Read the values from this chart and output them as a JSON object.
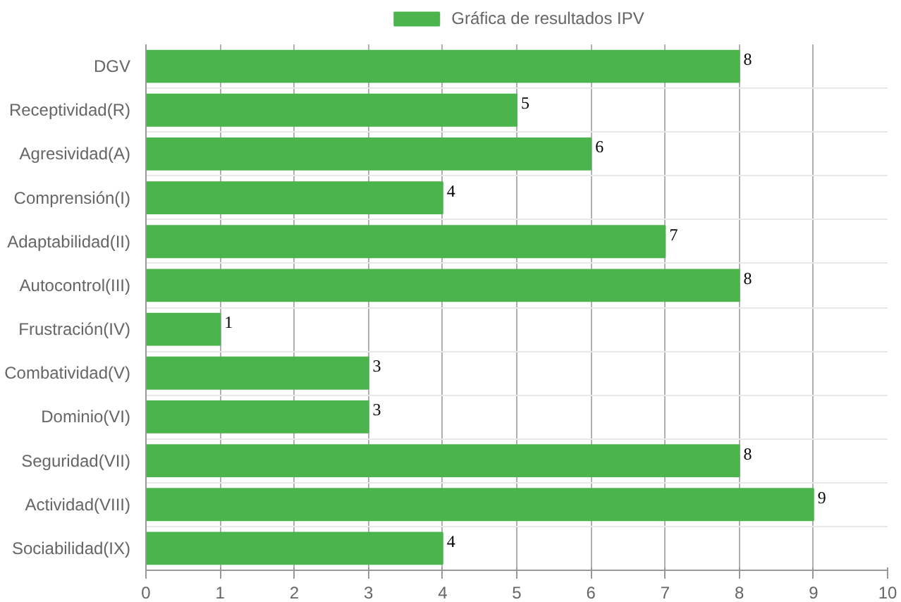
{
  "chart_data": {
    "type": "bar",
    "orientation": "horizontal",
    "categories": [
      "DGV",
      "Receptividad(R)",
      "Agresividad(A)",
      "Comprensión(I)",
      "Adaptabilidad(II)",
      "Autocontrol(III)",
      "Frustración(IV)",
      "Combatividad(V)",
      "Dominio(VI)",
      "Seguridad(VII)",
      "Actividad(VIII)",
      "Sociabilidad(IX)"
    ],
    "series": [
      {
        "name": "Gráfica de resultados IPV",
        "color": "#4cb44c",
        "values": [
          8,
          5,
          6,
          4,
          7,
          8,
          1,
          3,
          3,
          8,
          9,
          4
        ]
      }
    ],
    "xlim": [
      0,
      10
    ],
    "xticks": [
      0,
      1,
      2,
      3,
      4,
      5,
      6,
      7,
      8,
      9,
      10
    ],
    "grid": true,
    "legend": "top",
    "data_labels": true
  }
}
